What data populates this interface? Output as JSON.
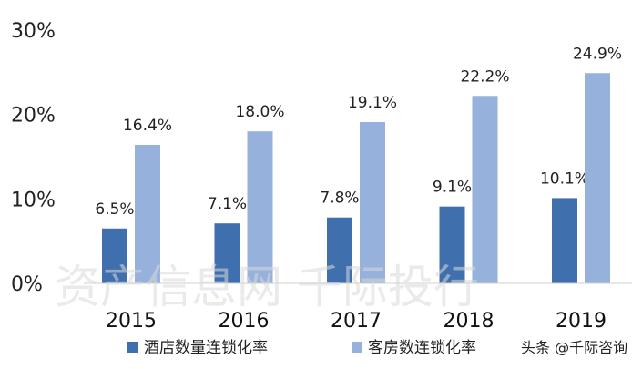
{
  "chart_data": {
    "type": "bar",
    "categories": [
      "2015",
      "2016",
      "2017",
      "2018",
      "2019"
    ],
    "series": [
      {
        "name": "酒店数量连锁化率",
        "values": [
          6.5,
          7.1,
          7.8,
          9.1,
          10.1
        ],
        "labels": [
          "6.5%",
          "7.1%",
          "7.8%",
          "9.1%",
          "10.1%"
        ],
        "color": "#3f6fac"
      },
      {
        "name": "客房数连锁化率",
        "values": [
          16.4,
          18.0,
          19.1,
          22.2,
          24.9
        ],
        "labels": [
          "16.4%",
          "18.0%",
          "19.1%",
          "22.2%",
          "24.9%"
        ],
        "color": "#96b1db"
      }
    ],
    "yticks": [
      "0%",
      "10%",
      "20%",
      "30%"
    ],
    "ylim": [
      0,
      30
    ],
    "grid": false,
    "legend_placement": "bottom"
  },
  "watermark": {
    "text": "资产信息网 千际投行",
    "corner_text": "头条 @千际咨询"
  }
}
